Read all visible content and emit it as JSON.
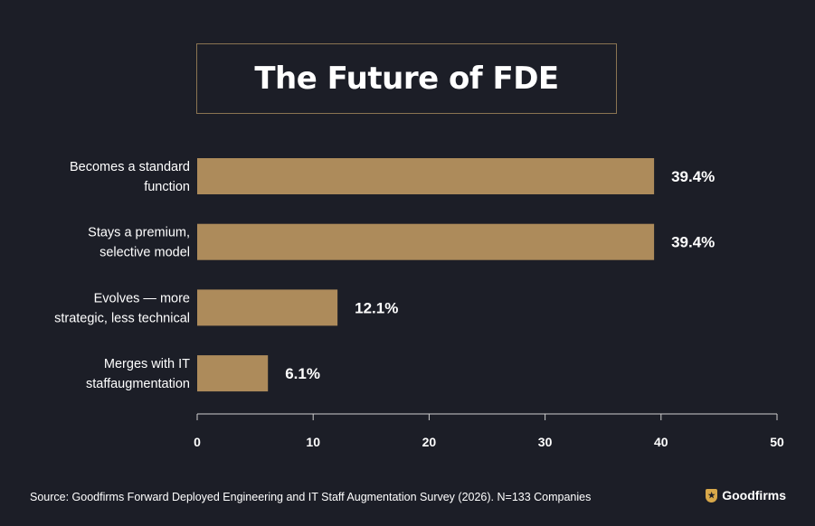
{
  "title": "The Future of FDE",
  "source": "Source: Goodfirms Forward Deployed Engineering and IT Staff Augmentation Survey (2026). N=133 Companies",
  "brand": {
    "name": "Goodfirms",
    "icon": "goodfirms-shield-icon"
  },
  "colors": {
    "background": "#1c1e27",
    "bar": "#ad8b5b",
    "title_border": "#8a7452",
    "text": "#ffffff"
  },
  "chart_data": {
    "type": "bar",
    "orientation": "horizontal",
    "categories": [
      [
        "Becomes a standard",
        "function"
      ],
      [
        "Stays a premium,",
        "selective model"
      ],
      [
        "Evolves — more",
        "strategic, less technical"
      ],
      [
        "Merges with IT",
        "staffaugmentation"
      ]
    ],
    "values": [
      39.4,
      39.4,
      12.1,
      6.1
    ],
    "value_labels": [
      "39.4%",
      "39.4%",
      "12.1%",
      "6.1%"
    ],
    "xlim": [
      0,
      50
    ],
    "xticks": [
      0,
      10,
      20,
      30,
      40,
      50
    ],
    "grid": false
  }
}
